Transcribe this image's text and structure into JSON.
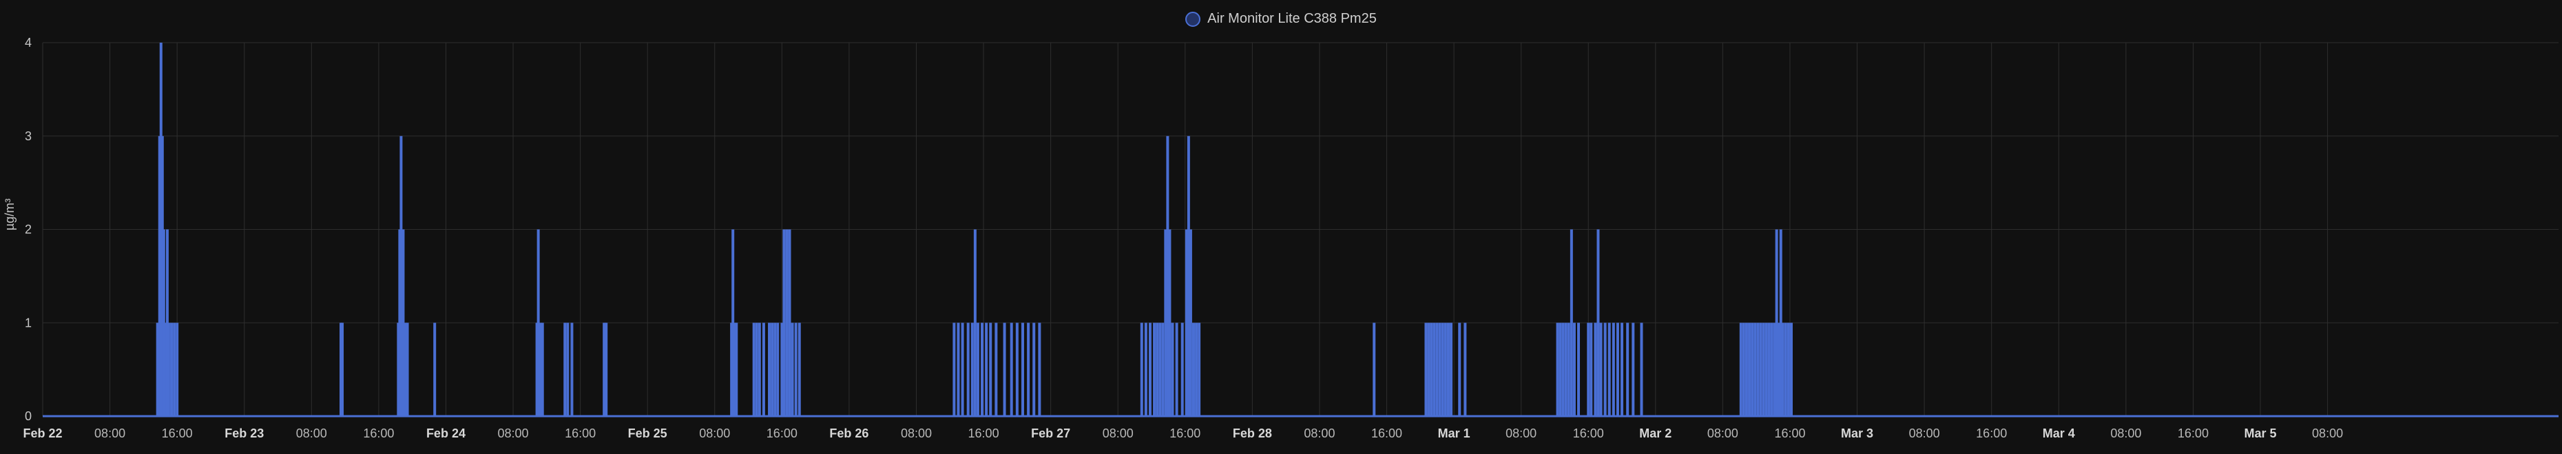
{
  "chart_data": {
    "type": "bar",
    "ylabel": "µg/m³",
    "ylim": [
      0,
      4
    ],
    "yticks": [
      "0",
      "1",
      "2",
      "3",
      "4"
    ],
    "xticks": [
      "Feb 22",
      "08:00",
      "16:00",
      "Feb 23",
      "08:00",
      "16:00",
      "Feb 24",
      "08:00",
      "16:00",
      "Feb 25",
      "08:00",
      "16:00",
      "Feb 26",
      "08:00",
      "16:00",
      "Feb 27",
      "08:00",
      "16:00",
      "Feb 28",
      "08:00",
      "16:00",
      "Mar 1",
      "08:00",
      "16:00",
      "Mar 2",
      "08:00",
      "16:00",
      "Mar 3",
      "08:00",
      "16:00",
      "Mar 4",
      "08:00",
      "16:00",
      "Mar 5",
      "08:00"
    ],
    "xticks_bold": [
      true,
      false,
      false,
      true,
      false,
      false,
      true,
      false,
      false,
      true,
      false,
      false,
      true,
      false,
      false,
      true,
      false,
      false,
      true,
      false,
      false,
      true,
      false,
      false,
      true,
      false,
      false,
      true,
      false,
      false,
      true,
      false,
      false,
      true,
      false
    ],
    "x_start": "2024-02-22T00:00",
    "x_end": "2024-03-05T11:30",
    "grid": true,
    "legend_position": "top-center",
    "series": [
      {
        "name": "Air Monitor Lite C388 Pm25",
        "color": "#4a6fd4",
        "points": [
          [
            "2024-02-22T13:40",
            1
          ],
          [
            "2024-02-22T13:55",
            3
          ],
          [
            "2024-02-22T14:05",
            4
          ],
          [
            "2024-02-22T14:15",
            3
          ],
          [
            "2024-02-22T14:25",
            2
          ],
          [
            "2024-02-22T14:40",
            1
          ],
          [
            "2024-02-22T14:50",
            2
          ],
          [
            "2024-02-22T15:00",
            1
          ],
          [
            "2024-02-22T15:20",
            1
          ],
          [
            "2024-02-22T15:40",
            1
          ],
          [
            "2024-02-22T16:00",
            1
          ],
          [
            "2024-02-23T11:30",
            1
          ],
          [
            "2024-02-23T11:40",
            1
          ],
          [
            "2024-02-23T18:20",
            1
          ],
          [
            "2024-02-23T18:30",
            2
          ],
          [
            "2024-02-23T18:40",
            3
          ],
          [
            "2024-02-23T18:55",
            2
          ],
          [
            "2024-02-23T19:10",
            1
          ],
          [
            "2024-02-23T19:25",
            1
          ],
          [
            "2024-02-23T22:40",
            1
          ],
          [
            "2024-02-24T10:50",
            1
          ],
          [
            "2024-02-24T11:00",
            2
          ],
          [
            "2024-02-24T11:15",
            1
          ],
          [
            "2024-02-24T11:30",
            1
          ],
          [
            "2024-02-24T14:10",
            1
          ],
          [
            "2024-02-24T14:30",
            1
          ],
          [
            "2024-02-24T15:00",
            1
          ],
          [
            "2024-02-24T18:50",
            1
          ],
          [
            "2024-02-24T19:05",
            1
          ],
          [
            "2024-02-25T10:00",
            1
          ],
          [
            "2024-02-25T10:10",
            2
          ],
          [
            "2024-02-25T10:20",
            1
          ],
          [
            "2024-02-25T10:35",
            1
          ],
          [
            "2024-02-25T12:40",
            1
          ],
          [
            "2024-02-25T13:00",
            1
          ],
          [
            "2024-02-25T13:20",
            1
          ],
          [
            "2024-02-25T13:50",
            1
          ],
          [
            "2024-02-25T14:30",
            1
          ],
          [
            "2024-02-25T14:50",
            1
          ],
          [
            "2024-02-25T15:10",
            1
          ],
          [
            "2024-02-25T15:30",
            1
          ],
          [
            "2024-02-25T16:00",
            1
          ],
          [
            "2024-02-25T16:15",
            2
          ],
          [
            "2024-02-25T16:35",
            2
          ],
          [
            "2024-02-25T16:55",
            2
          ],
          [
            "2024-02-25T17:15",
            1
          ],
          [
            "2024-02-25T17:40",
            1
          ],
          [
            "2024-02-25T18:05",
            1
          ],
          [
            "2024-02-26T12:30",
            1
          ],
          [
            "2024-02-26T13:00",
            1
          ],
          [
            "2024-02-26T13:30",
            1
          ],
          [
            "2024-02-26T14:10",
            1
          ],
          [
            "2024-02-26T14:40",
            1
          ],
          [
            "2024-02-26T15:00",
            2
          ],
          [
            "2024-02-26T15:20",
            1
          ],
          [
            "2024-02-26T15:50",
            1
          ],
          [
            "2024-02-26T16:20",
            1
          ],
          [
            "2024-02-26T16:50",
            1
          ],
          [
            "2024-02-26T17:30",
            1
          ],
          [
            "2024-02-26T18:30",
            1
          ],
          [
            "2024-02-26T19:20",
            1
          ],
          [
            "2024-02-26T20:00",
            1
          ],
          [
            "2024-02-26T20:40",
            1
          ],
          [
            "2024-02-26T21:20",
            1
          ],
          [
            "2024-02-26T22:00",
            1
          ],
          [
            "2024-02-26T22:40",
            1
          ],
          [
            "2024-02-27T10:50",
            1
          ],
          [
            "2024-02-27T11:20",
            1
          ],
          [
            "2024-02-27T11:50",
            1
          ],
          [
            "2024-02-27T12:20",
            1
          ],
          [
            "2024-02-27T12:40",
            1
          ],
          [
            "2024-02-27T13:00",
            1
          ],
          [
            "2024-02-27T13:20",
            1
          ],
          [
            "2024-02-27T13:40",
            2
          ],
          [
            "2024-02-27T13:55",
            3
          ],
          [
            "2024-02-27T14:10",
            2
          ],
          [
            "2024-02-27T14:30",
            1
          ],
          [
            "2024-02-27T15:00",
            1
          ],
          [
            "2024-02-27T15:40",
            1
          ],
          [
            "2024-02-27T16:10",
            2
          ],
          [
            "2024-02-27T16:25",
            3
          ],
          [
            "2024-02-27T16:40",
            2
          ],
          [
            "2024-02-27T17:00",
            1
          ],
          [
            "2024-02-27T17:20",
            1
          ],
          [
            "2024-02-27T17:40",
            1
          ],
          [
            "2024-02-28T14:30",
            1
          ],
          [
            "2024-02-28T20:40",
            1
          ],
          [
            "2024-02-28T21:00",
            1
          ],
          [
            "2024-02-28T21:20",
            1
          ],
          [
            "2024-02-28T21:40",
            1
          ],
          [
            "2024-02-28T22:00",
            1
          ],
          [
            "2024-02-28T22:20",
            1
          ],
          [
            "2024-02-28T22:40",
            1
          ],
          [
            "2024-02-28T23:00",
            1
          ],
          [
            "2024-02-28T23:20",
            1
          ],
          [
            "2024-02-28T23:40",
            1
          ],
          [
            "2024-02-29T00:40",
            1
          ],
          [
            "2024-02-29T01:20",
            1
          ],
          [
            "2024-02-29T12:20",
            1
          ],
          [
            "2024-02-29T12:40",
            1
          ],
          [
            "2024-02-29T13:00",
            1
          ],
          [
            "2024-02-29T13:20",
            1
          ],
          [
            "2024-02-29T13:40",
            1
          ],
          [
            "2024-02-29T14:00",
            2
          ],
          [
            "2024-02-29T14:20",
            1
          ],
          [
            "2024-02-29T14:50",
            1
          ],
          [
            "2024-02-29T16:00",
            1
          ],
          [
            "2024-02-29T16:20",
            1
          ],
          [
            "2024-02-29T16:50",
            1
          ],
          [
            "2024-02-29T17:10",
            2
          ],
          [
            "2024-02-29T17:30",
            1
          ],
          [
            "2024-02-29T18:00",
            1
          ],
          [
            "2024-02-29T18:30",
            1
          ],
          [
            "2024-02-29T19:00",
            1
          ],
          [
            "2024-02-29T19:30",
            1
          ],
          [
            "2024-02-29T20:00",
            1
          ],
          [
            "2024-02-29T20:40",
            1
          ],
          [
            "2024-02-29T21:20",
            1
          ],
          [
            "2024-02-29T22:20",
            1
          ],
          [
            "2024-03-01T10:10",
            1
          ],
          [
            "2024-03-01T10:30",
            1
          ],
          [
            "2024-03-01T10:50",
            1
          ],
          [
            "2024-03-01T11:10",
            1
          ],
          [
            "2024-03-01T11:30",
            1
          ],
          [
            "2024-03-01T11:50",
            1
          ],
          [
            "2024-03-01T12:10",
            1
          ],
          [
            "2024-03-01T12:30",
            1
          ],
          [
            "2024-03-01T12:50",
            1
          ],
          [
            "2024-03-01T13:10",
            1
          ],
          [
            "2024-03-01T13:30",
            1
          ],
          [
            "2024-03-01T13:50",
            1
          ],
          [
            "2024-03-01T14:10",
            1
          ],
          [
            "2024-03-01T14:25",
            2
          ],
          [
            "2024-03-01T14:40",
            1
          ],
          [
            "2024-03-01T14:55",
            2
          ],
          [
            "2024-03-01T15:10",
            1
          ],
          [
            "2024-03-01T15:30",
            1
          ],
          [
            "2024-03-01T15:50",
            1
          ],
          [
            "2024-03-01T16:10",
            1
          ]
        ]
      }
    ]
  }
}
